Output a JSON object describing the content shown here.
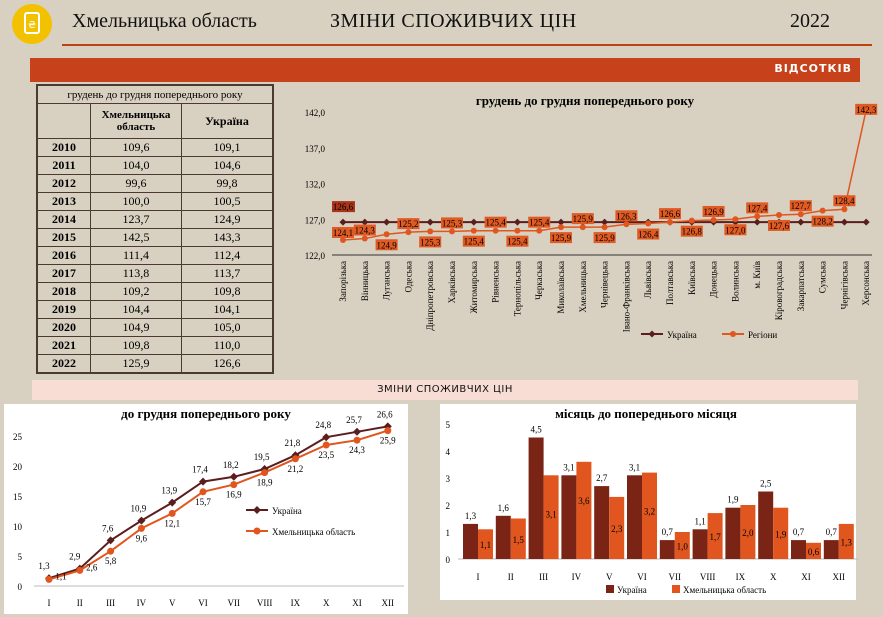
{
  "header": {
    "region": "Хмельницька область",
    "title": "ЗМІНИ СПОЖИВЧИХ ЦІН",
    "year": "2022",
    "units": "ВІДСОТКІВ",
    "section": "ЗМІНИ СПОЖИВЧИХ ЦІН"
  },
  "table": {
    "caption": "грудень до грудня попереднього року",
    "col_region": "Хмельницька область",
    "col_country": "Україна",
    "rows": [
      {
        "year": "2010",
        "region": "109,6",
        "country": "109,1"
      },
      {
        "year": "2011",
        "region": "104,0",
        "country": "104,6"
      },
      {
        "year": "2012",
        "region": "99,6",
        "country": "99,8"
      },
      {
        "year": "2013",
        "region": "100,0",
        "country": "100,5"
      },
      {
        "year": "2014",
        "region": "123,7",
        "country": "124,9"
      },
      {
        "year": "2015",
        "region": "142,5",
        "country": "143,3"
      },
      {
        "year": "2016",
        "region": "111,4",
        "country": "112,4"
      },
      {
        "year": "2017",
        "region": "113,8",
        "country": "113,7"
      },
      {
        "year": "2018",
        "region": "109,2",
        "country": "109,8"
      },
      {
        "year": "2019",
        "region": "104,4",
        "country": "104,1"
      },
      {
        "year": "2020",
        "region": "104,9",
        "country": "105,0"
      },
      {
        "year": "2021",
        "region": "109,8",
        "country": "110,0"
      },
      {
        "year": "2022",
        "region": "125,9",
        "country": "126,6"
      }
    ]
  },
  "chart_data": [
    {
      "type": "line",
      "title": "грудень до грудня попереднього року",
      "ylim": [
        122,
        142
      ],
      "yticks": [
        "122,0",
        "127,0",
        "132,0",
        "137,0",
        "142,0"
      ],
      "categories": [
        "Запорізька",
        "Вінницька",
        "Луганська",
        "Одеська",
        "Дніпропетровська",
        "Харківська",
        "Житомирська",
        "Рівненська",
        "Тернопільська",
        "Черкаська",
        "Миколаївська",
        "Хмельницька",
        "Чернівецька",
        "Івано-Франківська",
        "Львівська",
        "Полтавська",
        "Київська",
        "Донецька",
        "Волинська",
        "м. Київ",
        "Кіровоградська",
        "Закарпатська",
        "Сумська",
        "Чернігівська",
        "Херсонська"
      ],
      "series": [
        {
          "name": "Україна",
          "color": "#5a1e1e",
          "values": [
            126.6,
            126.6,
            126.6,
            126.6,
            126.6,
            126.6,
            126.6,
            126.6,
            126.6,
            126.6,
            126.6,
            126.6,
            126.6,
            126.6,
            126.6,
            126.6,
            126.6,
            126.6,
            126.6,
            126.6,
            126.6,
            126.6,
            126.6,
            126.6,
            126.6
          ]
        },
        {
          "name": "Регіони",
          "color": "#e0561e",
          "values": [
            124.1,
            124.3,
            124.9,
            125.2,
            125.3,
            125.3,
            125.4,
            125.4,
            125.4,
            125.4,
            125.9,
            125.9,
            125.9,
            126.3,
            126.4,
            126.6,
            126.8,
            126.9,
            127.0,
            127.4,
            127.6,
            127.7,
            128.2,
            128.4,
            142.3
          ]
        }
      ],
      "labels": {
        "ukraine": "126,6",
        "regions": [
          "124,1",
          "124,3",
          "124,9",
          "125,2",
          "125,3",
          "125,3",
          "125,4",
          "125,4",
          "125,4",
          "125,4",
          "125,9",
          "125,9",
          "125,9",
          "126,3",
          "126,4",
          "126,6",
          "126,8",
          "126,9",
          "127,0",
          "127,4",
          "127,6",
          "127,7",
          "128,2",
          "128,4",
          "142,3"
        ]
      },
      "legend": "bottom"
    },
    {
      "type": "line",
      "title": "до грудня попереднього року",
      "ylim": [
        0,
        25
      ],
      "yticks": [
        "0",
        "5",
        "10",
        "15",
        "20",
        "25"
      ],
      "categories": [
        "I",
        "II",
        "III",
        "IV",
        "V",
        "VI",
        "VII",
        "VIII",
        "IX",
        "X",
        "XI",
        "XII"
      ],
      "series": [
        {
          "name": "Україна",
          "color": "#5a1e1e",
          "values": [
            1.3,
            2.9,
            7.6,
            10.9,
            13.9,
            17.4,
            18.2,
            19.5,
            21.8,
            24.8,
            25.7,
            26.6
          ]
        },
        {
          "name": "Хмельницька область",
          "color": "#e0561e",
          "values": [
            1.1,
            2.6,
            5.8,
            9.6,
            12.1,
            15.7,
            16.9,
            18.9,
            21.2,
            23.5,
            24.3,
            25.9
          ]
        }
      ],
      "labels": {
        "s0": [
          "1,3",
          "2,9",
          "7,6",
          "10,9",
          "13,9",
          "17,4",
          "18,2",
          "19,5",
          "21,8",
          "24,8",
          "25,7",
          "26,6"
        ],
        "s1": [
          "1,1",
          "2,6",
          "5,8",
          "9,6",
          "12,1",
          "15,7",
          "16,9",
          "18,9",
          "21,2",
          "23,5",
          "24,3",
          "25,9"
        ]
      },
      "legend": "right"
    },
    {
      "type": "bar",
      "title": "місяць до попереднього місяця",
      "ylim": [
        0,
        5
      ],
      "yticks": [
        "0",
        "1",
        "2",
        "3",
        "4",
        "5"
      ],
      "categories": [
        "I",
        "II",
        "III",
        "IV",
        "V",
        "VI",
        "VII",
        "VIII",
        "IX",
        "X",
        "XI",
        "XII"
      ],
      "series": [
        {
          "name": "Україна",
          "color": "#7a2416",
          "values": [
            1.3,
            1.6,
            4.5,
            3.1,
            2.7,
            3.1,
            0.7,
            1.1,
            1.9,
            2.5,
            0.7,
            0.7
          ]
        },
        {
          "name": "Хмельницька область",
          "color": "#e0561e",
          "values": [
            1.1,
            1.5,
            3.1,
            3.6,
            2.3,
            3.2,
            1.0,
            1.7,
            2.0,
            1.9,
            0.6,
            1.3
          ]
        }
      ],
      "labels": {
        "s0": [
          "1,3",
          "1,6",
          "4,5",
          "3,1",
          "2,7",
          "3,1",
          "0,7",
          "1,1",
          "1,9",
          "2,5",
          "0,7",
          "0,7"
        ],
        "s1": [
          "1,1",
          "1,5",
          "3,1",
          "3,6",
          "2,3",
          "3,2",
          "1,0",
          "1,7",
          "2,0",
          "1,9",
          "0,6",
          "1,3"
        ]
      },
      "legend": "bottom"
    }
  ]
}
